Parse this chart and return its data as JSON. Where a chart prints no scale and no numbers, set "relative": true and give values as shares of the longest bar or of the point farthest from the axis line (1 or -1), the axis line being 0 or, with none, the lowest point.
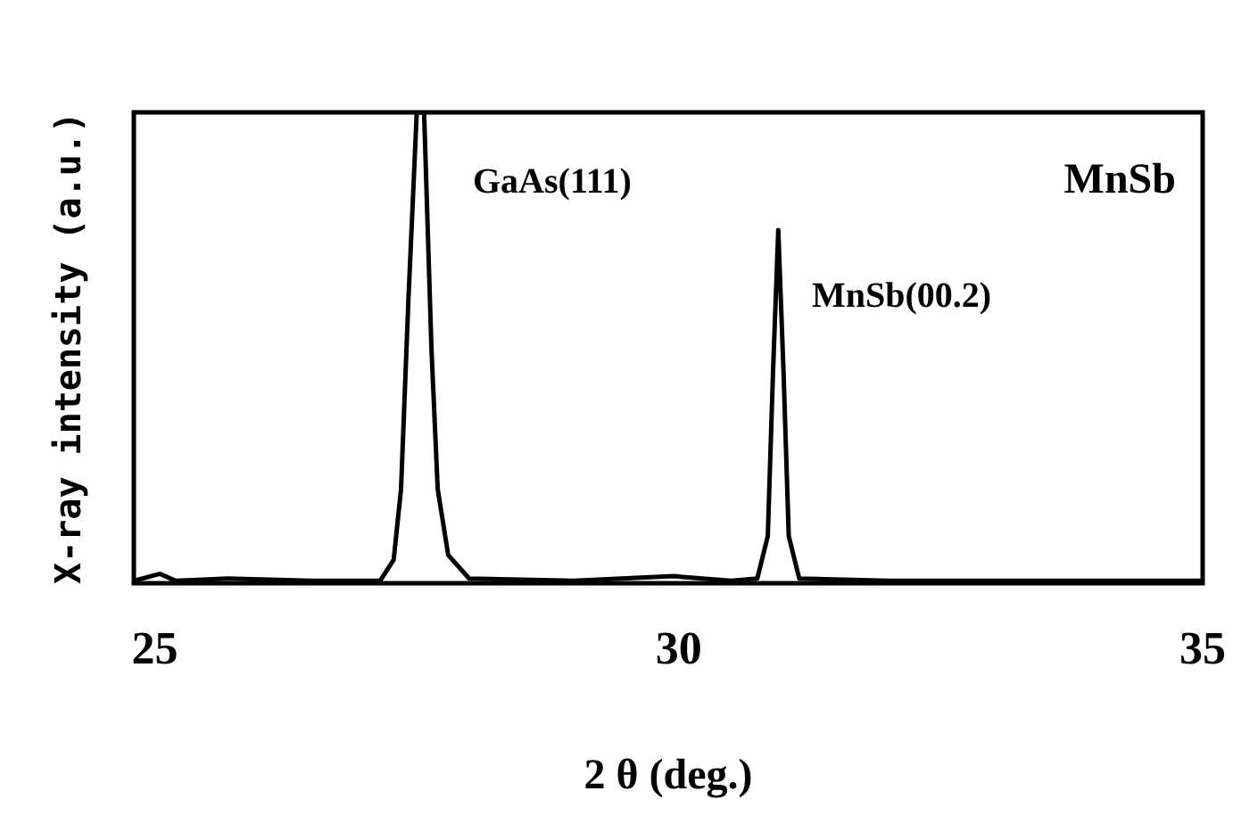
{
  "chart_data": {
    "type": "line",
    "relative": true,
    "xlabel": "2 θ (deg.)",
    "ylabel": "X-ray intensity (a.u.)",
    "xlim": [
      24.8,
      35
    ],
    "xticks": [
      25,
      30,
      35
    ],
    "grid": false,
    "marker": "none",
    "line_style": "solid",
    "series": [
      {
        "color": "#000000",
        "x": [
          24.8,
          25.05,
          25.2,
          25.7,
          26.5,
          27.15,
          27.28,
          27.35,
          27.42,
          27.5,
          27.57,
          27.64,
          27.7,
          27.8,
          28.0,
          29.0,
          29.95,
          30.5,
          30.75,
          30.85,
          30.9,
          30.95,
          31.0,
          31.05,
          31.15,
          32.0,
          35.0
        ],
        "values": [
          0.005,
          0.02,
          0.005,
          0.01,
          0.005,
          0.005,
          0.05,
          0.2,
          0.6,
          1,
          1,
          0.5,
          0.2,
          0.06,
          0.01,
          0.005,
          0.015,
          0.005,
          0.01,
          0.1,
          0.45,
          0.75,
          0.45,
          0.1,
          0.01,
          0.005,
          0.005
        ]
      }
    ],
    "annotations": [
      "GaAs(111)",
      "MnSb(00.2)",
      "MnSb"
    ]
  }
}
